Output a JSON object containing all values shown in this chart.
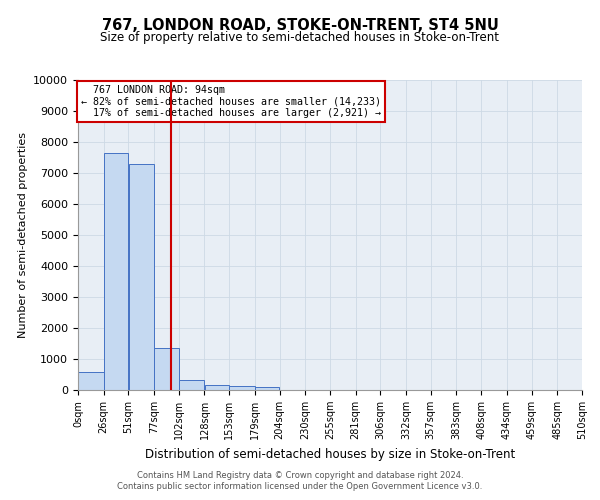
{
  "title": "767, LONDON ROAD, STOKE-ON-TRENT, ST4 5NU",
  "subtitle": "Size of property relative to semi-detached houses in Stoke-on-Trent",
  "xlabel": "Distribution of semi-detached houses by size in Stoke-on-Trent",
  "ylabel": "Number of semi-detached properties",
  "footnote1": "Contains HM Land Registry data © Crown copyright and database right 2024.",
  "footnote2": "Contains public sector information licensed under the Open Government Licence v3.0.",
  "property_size": 94,
  "property_label": "767 LONDON ROAD: 94sqm",
  "pct_smaller": 82,
  "pct_smaller_n": 14233,
  "pct_larger": 17,
  "pct_larger_n": 2921,
  "bar_bins": [
    0,
    26,
    51,
    77,
    102,
    128,
    153,
    179,
    204,
    230,
    255,
    281,
    306,
    332,
    357,
    383,
    408,
    434,
    459,
    485,
    510
  ],
  "bar_heights": [
    580,
    7650,
    7280,
    1360,
    320,
    155,
    115,
    95,
    0,
    0,
    0,
    0,
    0,
    0,
    0,
    0,
    0,
    0,
    0,
    0
  ],
  "bar_color": "#c5d9f1",
  "bar_edge_color": "#4472c4",
  "red_line_x": 94,
  "ylim": [
    0,
    10000
  ],
  "yticks": [
    0,
    1000,
    2000,
    3000,
    4000,
    5000,
    6000,
    7000,
    8000,
    9000,
    10000
  ],
  "xtick_labels": [
    "0sqm",
    "26sqm",
    "51sqm",
    "77sqm",
    "102sqm",
    "128sqm",
    "153sqm",
    "179sqm",
    "204sqm",
    "230sqm",
    "255sqm",
    "281sqm",
    "306sqm",
    "332sqm",
    "357sqm",
    "383sqm",
    "408sqm",
    "434sqm",
    "459sqm",
    "485sqm",
    "510sqm"
  ],
  "grid_color": "#cdd9e5",
  "bg_color": "#e8eef5"
}
